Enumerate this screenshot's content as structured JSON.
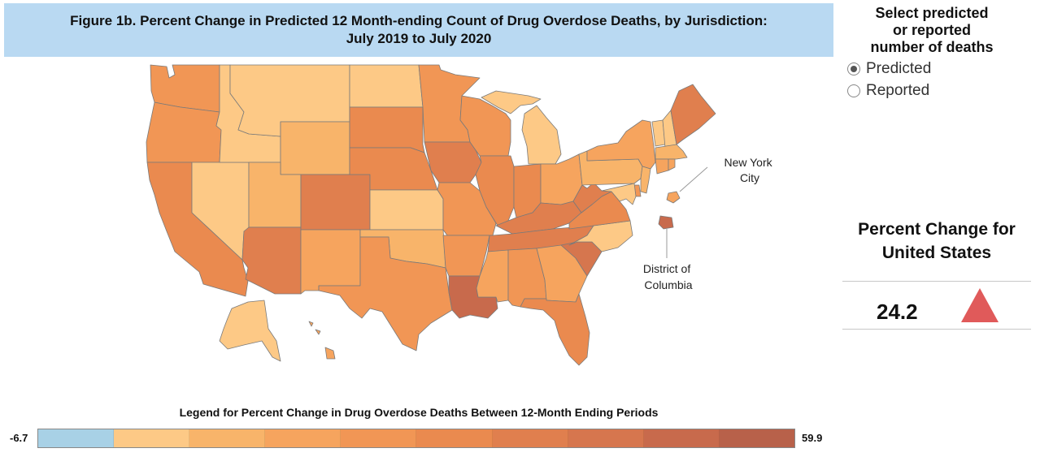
{
  "title": {
    "line1": "Figure 1b. Percent Change in Predicted 12 Month-ending Count of Drug Overdose Deaths, by Jurisdiction:",
    "line2": "July 2019 to July 2020"
  },
  "selector": {
    "title": "Select predicted\nor reported\nnumber of deaths",
    "options": [
      "Predicted",
      "Reported"
    ],
    "selected": "Predicted"
  },
  "annotations": {
    "nyc": "New York\nCity",
    "dc": "District of\nColumbia"
  },
  "us_summary": {
    "title_line1": "Percent Change for",
    "title_line2": "United States",
    "value": "24.2",
    "direction": "up",
    "arrow_color": "#e05a5a"
  },
  "legend": {
    "title": "Legend for Percent Change in Drug Overdose Deaths Between 12-Month Ending Periods",
    "min_label": "-6.7",
    "max_label": "59.9",
    "colors": [
      "#a8d1e6",
      "#fdc986",
      "#f8b46a",
      "#f6a45e",
      "#f19655",
      "#ea8a4f",
      "#e07f4e",
      "#d6764e",
      "#c86a4c",
      "#b8614a"
    ]
  },
  "state_colors": {
    "WA": "#f19655",
    "OR": "#f19655",
    "CA": "#ea8a4f",
    "NV": "#fdc986",
    "ID": "#fdc986",
    "MT": "#fdc986",
    "WY": "#f8b46a",
    "UT": "#f8b46a",
    "AZ": "#e07f4e",
    "CO": "#e07f4e",
    "NM": "#f6a45e",
    "ND": "#fdc986",
    "SD": "#ea8a4f",
    "NE": "#ea8a4f",
    "KS": "#fdc986",
    "OK": "#f8b46a",
    "TX": "#f19655",
    "MN": "#f19655",
    "IA": "#e07f4e",
    "MO": "#f19655",
    "AR": "#f19655",
    "LA": "#c86a4c",
    "WI": "#f19655",
    "IL": "#ea8a4f",
    "MI": "#fdc986",
    "IN": "#ea8a4f",
    "OH": "#f6a45e",
    "KY": "#e07f4e",
    "TN": "#e07f4e",
    "MS": "#f6a45e",
    "AL": "#f19655",
    "GA": "#f6a45e",
    "FL": "#ea8a4f",
    "SC": "#d6764e",
    "NC": "#fdc986",
    "VA": "#ea8a4f",
    "WV": "#e07f4e",
    "PA": "#f8b46a",
    "NY": "#f6a45e",
    "VT": "#fdc986",
    "NH": "#fdc986",
    "ME": "#e07f4e",
    "MA": "#f8b46a",
    "CT": "#f6a45e",
    "RI": "#f6a45e",
    "NJ": "#f8b46a",
    "DE": "#f19655",
    "MD": "#fdc986",
    "AK": "#fdc986",
    "HI": "#f6a45e",
    "NYC": "#f6a45e",
    "DC": "#c86a4c"
  }
}
